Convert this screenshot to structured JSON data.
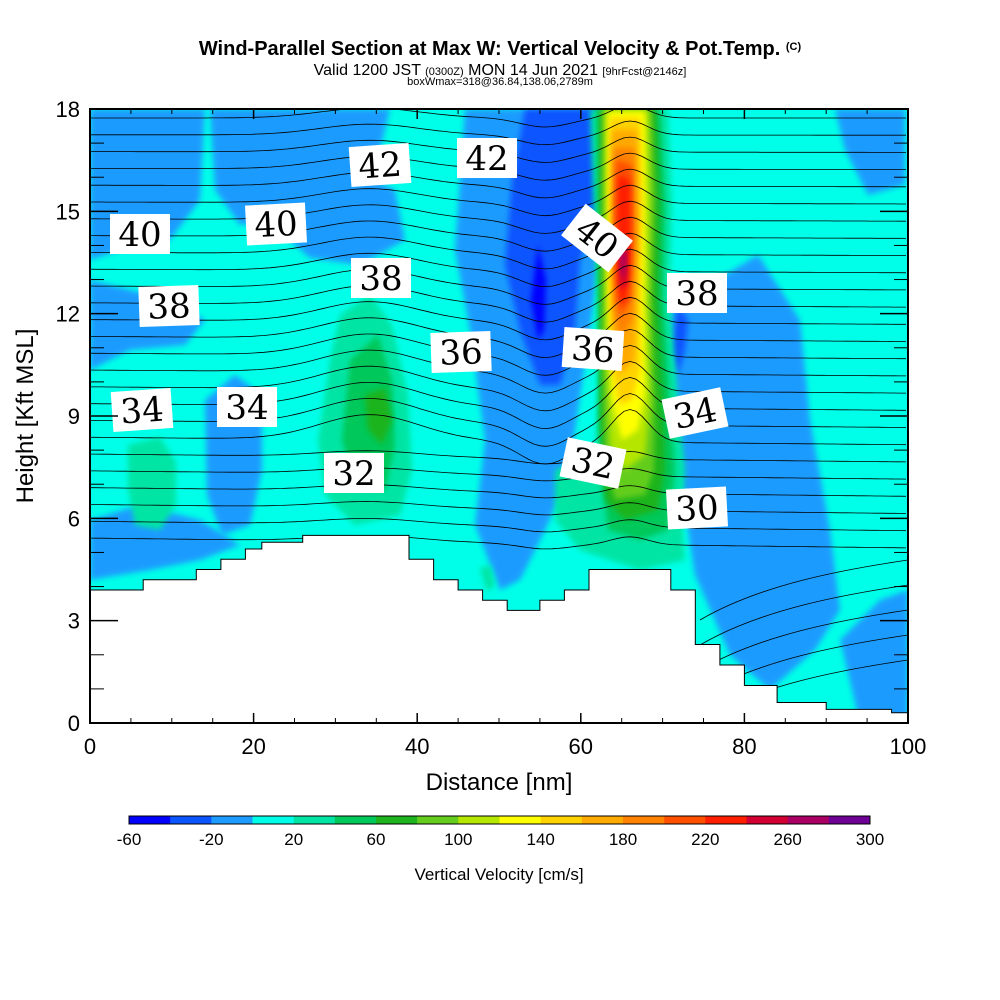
{
  "header": {
    "title": "Wind-Parallel Section at Max W: Vertical Velocity & Pot.Temp.",
    "title_mark": "(C)",
    "valid_prefix": "Valid 1200 JST",
    "valid_utc": "(0300Z)",
    "valid_date": "MON 14 Jun 2021",
    "forecast": "[9hrFcst@2146z]",
    "box_info": "boxWmax=318@36.84,138.06,2789m"
  },
  "chart_data": {
    "type": "heatmap",
    "xlabel": "Distance [nm]",
    "ylabel": "Height [Kft MSL]",
    "xlim": [
      0,
      100
    ],
    "ylim": [
      0,
      18
    ],
    "x_ticks": [
      0,
      20,
      40,
      60,
      80,
      100
    ],
    "y_ticks": [
      0,
      3,
      6,
      9,
      12,
      15,
      18
    ],
    "colorbar": {
      "label": "Vertical Velocity [cm/s]",
      "tick_labels": [
        "-60",
        "-20",
        "20",
        "60",
        "100",
        "140",
        "180",
        "220",
        "260",
        "300"
      ],
      "levels": [
        -60,
        -40,
        -20,
        0,
        20,
        40,
        60,
        80,
        100,
        120,
        140,
        160,
        180,
        200,
        220,
        240,
        260,
        280,
        300
      ],
      "colors": [
        "#0000ff",
        "#0a55ff",
        "#1e9bff",
        "#00ffe8",
        "#00e5a4",
        "#00c85a",
        "#1eb41e",
        "#64cd1e",
        "#b4e600",
        "#ffff00",
        "#ffd200",
        "#ffaa00",
        "#ff8200",
        "#ff5000",
        "#ff1e00",
        "#d20032",
        "#aa0064",
        "#6e0096"
      ]
    },
    "contour_labels": [
      "42",
      "42",
      "40",
      "40",
      "40",
      "38",
      "38",
      "38",
      "36",
      "36",
      "34",
      "34",
      "34",
      "32",
      "32",
      "30"
    ],
    "terrain_kft": [
      [
        0,
        3.9
      ],
      [
        6.5,
        3.9
      ],
      [
        6.5,
        4.2
      ],
      [
        13,
        4.2
      ],
      [
        13,
        4.5
      ],
      [
        16,
        4.5
      ],
      [
        16,
        4.8
      ],
      [
        19,
        4.8
      ],
      [
        19,
        5.1
      ],
      [
        21,
        5.1
      ],
      [
        21,
        5.3
      ],
      [
        26,
        5.3
      ],
      [
        26,
        5.5
      ],
      [
        39,
        5.5
      ],
      [
        39,
        4.8
      ],
      [
        42,
        4.8
      ],
      [
        42,
        4.2
      ],
      [
        45,
        4.2
      ],
      [
        45,
        3.9
      ],
      [
        48,
        3.9
      ],
      [
        48,
        3.6
      ],
      [
        51,
        3.6
      ],
      [
        51,
        3.3
      ],
      [
        55,
        3.3
      ],
      [
        55,
        3.6
      ],
      [
        58,
        3.6
      ],
      [
        58,
        3.9
      ],
      [
        61,
        3.9
      ],
      [
        61,
        4.5
      ],
      [
        71,
        4.5
      ],
      [
        71,
        3.9
      ],
      [
        74,
        3.9
      ],
      [
        74,
        2.3
      ],
      [
        77,
        2.3
      ],
      [
        77,
        1.7
      ],
      [
        80,
        1.7
      ],
      [
        80,
        1.1
      ],
      [
        84,
        1.1
      ],
      [
        84,
        0.6
      ],
      [
        90,
        0.6
      ],
      [
        90,
        0.4
      ],
      [
        98,
        0.4
      ],
      [
        98,
        0.3
      ],
      [
        100,
        0.3
      ]
    ]
  }
}
